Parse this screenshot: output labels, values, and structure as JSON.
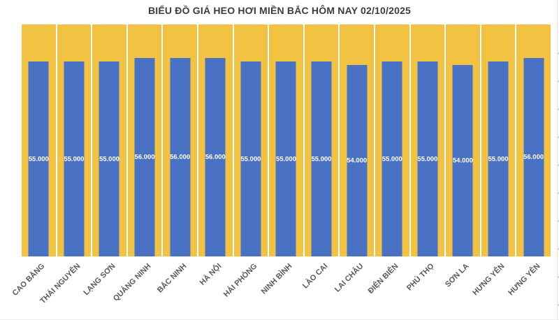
{
  "chart_data": {
    "type": "bar",
    "title": "BIỂU ĐỒ GIÁ HEO HƠI MIỀN BẮC HÔM NAY 02/10/2025",
    "categories": [
      "CAO BẰNG",
      "THÁI NGUYÊN",
      "LẠNG SƠN",
      "QUẢNG NINH",
      "BẮC NINH",
      "HÀ NỘI",
      "HẢI PHÒNG",
      "NINH BÌNH",
      "LÀO CAI",
      "LAI CHÂU",
      "ĐIỆN BIÊN",
      "PHÚ THỌ",
      "SƠN LA",
      "HƯNG YÊN",
      "HƯNG YÊN"
    ],
    "values": [
      55000,
      55000,
      55000,
      56000,
      56000,
      56000,
      55000,
      55000,
      55000,
      54000,
      55000,
      55000,
      54000,
      55000,
      56000
    ],
    "value_labels": [
      "55.000",
      "55.000",
      "55.000",
      "56.000",
      "56.000",
      "56.000",
      "55.000",
      "55.000",
      "55.000",
      "54.000",
      "55.000",
      "55.000",
      "54.000",
      "55.000",
      "56.000"
    ],
    "xlabel": "",
    "ylabel": "",
    "ylim": [
      0,
      65500
    ],
    "grid": false,
    "legend": "none",
    "colors": {
      "bar": "#4A72C4",
      "column_background": "#F2C342",
      "value_label": "#FFFFFF",
      "category_label": "#595959",
      "title": "#3C3C3C"
    }
  }
}
